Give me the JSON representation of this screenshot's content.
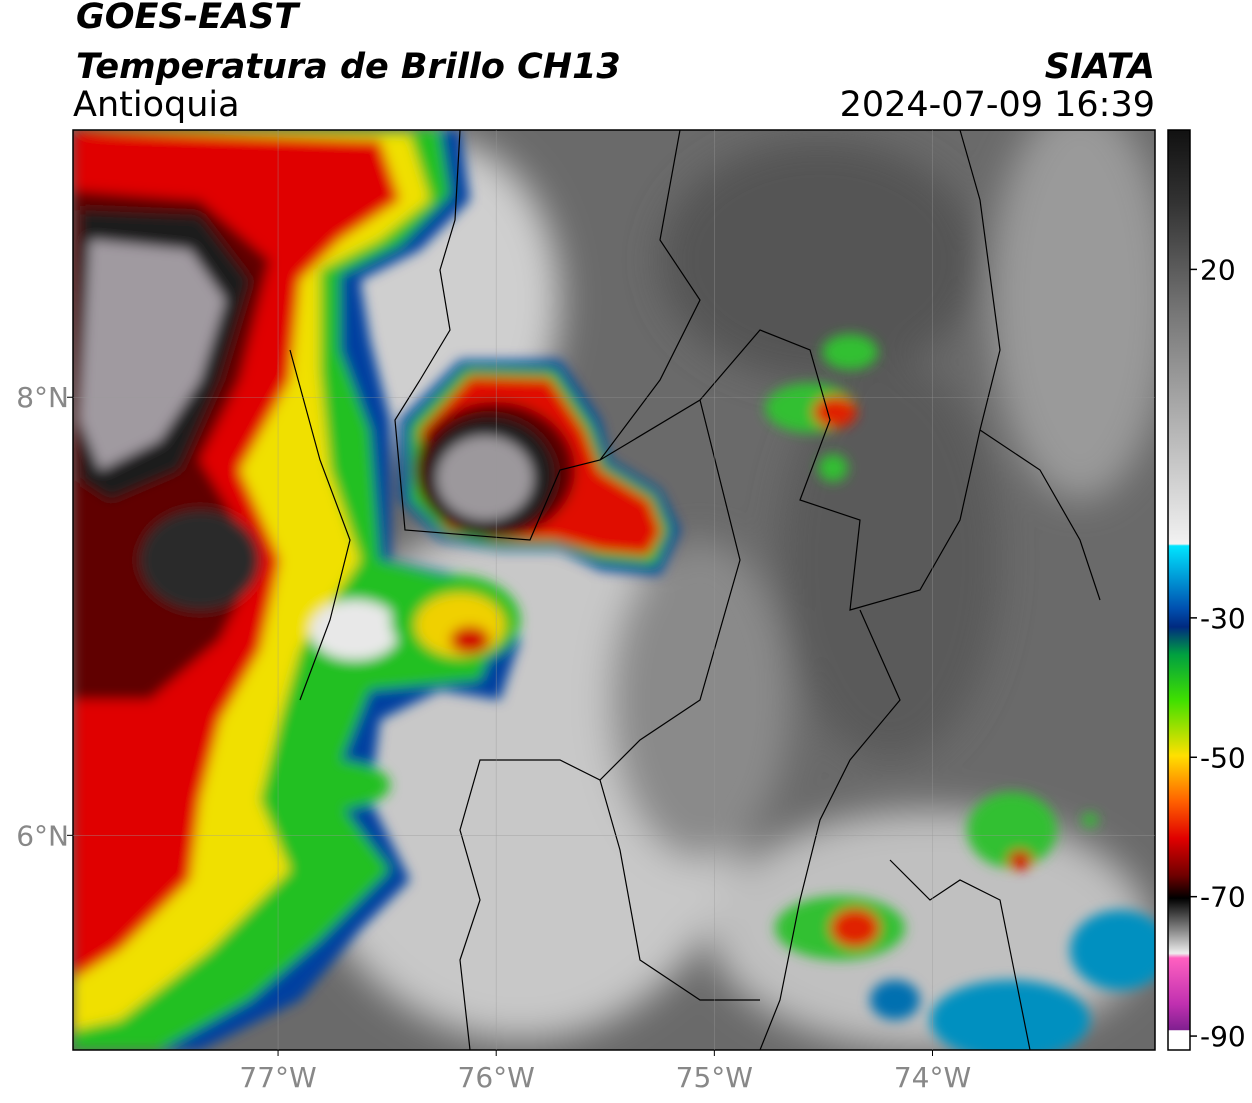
{
  "header": {
    "satellite": "GOES-EAST",
    "product": "Temperatura de Brillo CH13",
    "region": "Antioquia",
    "source": "SIATA",
    "datetime": "2024-07-09 16:39"
  },
  "map": {
    "lon_lim": [
      -77.94,
      -72.98
    ],
    "lat_lim": [
      5.02,
      9.22
    ],
    "lon_ticks": [
      {
        "value": -77,
        "label": "77°W"
      },
      {
        "value": -76,
        "label": "76°W"
      },
      {
        "value": -75,
        "label": "75°W"
      },
      {
        "value": -74,
        "label": "74°W"
      }
    ],
    "lat_ticks": [
      {
        "value": 8,
        "label": "8°N"
      },
      {
        "value": 6,
        "label": "6°N"
      }
    ],
    "grid": true
  },
  "colorbar": {
    "lim": [
      -92,
      40
    ],
    "ticks": [
      20,
      -30,
      -50,
      -70,
      -90
    ]
  }
}
